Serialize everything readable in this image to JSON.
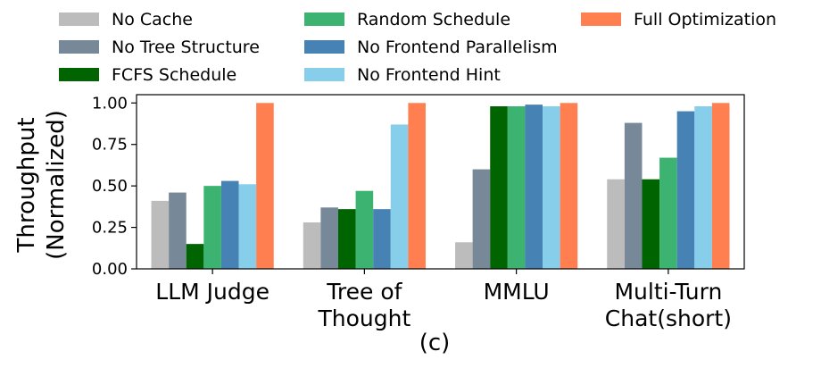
{
  "chart_data": {
    "type": "bar",
    "caption": "(c)",
    "ylabel_lines": [
      "Throughput",
      "(Normalized)"
    ],
    "ylim": [
      0,
      1.05
    ],
    "yticks": [
      "0.00",
      "0.25",
      "0.50",
      "0.75",
      "1.00"
    ],
    "ytick_values": [
      0,
      0.25,
      0.5,
      0.75,
      1.0
    ],
    "categories": [
      {
        "lines": [
          "LLM Judge"
        ]
      },
      {
        "lines": [
          "Tree of",
          "Thought"
        ]
      },
      {
        "lines": [
          "MMLU"
        ]
      },
      {
        "lines": [
          "Multi-Turn",
          "Chat(short)"
        ]
      }
    ],
    "series": [
      {
        "name": "No Cache",
        "color": "#bcbcbc",
        "values": [
          0.41,
          0.28,
          0.16,
          0.54
        ]
      },
      {
        "name": "No Tree Structure",
        "color": "#778899",
        "values": [
          0.46,
          0.37,
          0.6,
          0.88
        ]
      },
      {
        "name": "FCFS Schedule",
        "color": "#006400",
        "values": [
          0.15,
          0.36,
          0.98,
          0.54
        ]
      },
      {
        "name": "Random Schedule",
        "color": "#3cb371",
        "values": [
          0.5,
          0.47,
          0.98,
          0.67
        ]
      },
      {
        "name": "No Frontend Parallelism",
        "color": "#4682b4",
        "values": [
          0.53,
          0.36,
          0.99,
          0.95
        ]
      },
      {
        "name": "No Frontend Hint",
        "color": "#87ceeb",
        "values": [
          0.51,
          0.87,
          0.98,
          0.98
        ]
      },
      {
        "name": "Full Optimization",
        "color": "#ff7f50",
        "values": [
          1.0,
          1.0,
          1.0,
          1.0
        ]
      }
    ],
    "legend_position": "top",
    "legend_columns": 3
  }
}
